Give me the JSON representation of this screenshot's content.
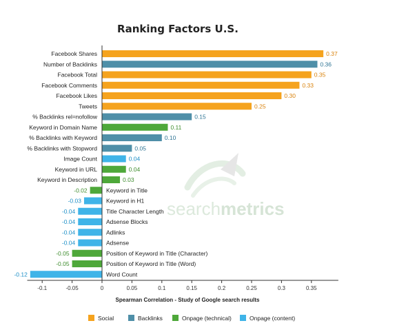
{
  "chart_data": {
    "type": "bar",
    "orientation": "horizontal",
    "title": "Ranking Factors U.S.",
    "xlabel": "Spearman Correlation - Study of Google search results",
    "xlim": [
      -0.125,
      0.395
    ],
    "x_ticks": [
      "-0.1",
      "-0.05",
      "0",
      "0.05",
      "0.1",
      "0.15",
      "0.2",
      "0.25",
      "0.3",
      "0.35"
    ],
    "x_tick_values": [
      -0.1,
      -0.05,
      0,
      0.05,
      0.1,
      0.15,
      0.2,
      0.25,
      0.3,
      0.35
    ],
    "legend": [
      {
        "name": "Social",
        "color": "#f5a31e"
      },
      {
        "name": "Backlinks",
        "color": "#4f8fa8"
      },
      {
        "name": "Onpage (technical)",
        "color": "#4ea83a"
      },
      {
        "name": "Onpage (content)",
        "color": "#3fb4e8"
      }
    ],
    "legend_position": "bottom",
    "watermark": {
      "part1": "search",
      "part2": "metrics"
    },
    "bars": [
      {
        "label": "Facebook Shares",
        "value": 0.37,
        "value_label": "0.37",
        "group": "Social"
      },
      {
        "label": "Number of Backlinks",
        "value": 0.36,
        "value_label": "0.36",
        "group": "Backlinks"
      },
      {
        "label": "Facebook Total",
        "value": 0.35,
        "value_label": "0.35",
        "group": "Social"
      },
      {
        "label": "Facebook Comments",
        "value": 0.33,
        "value_label": "0.33",
        "group": "Social"
      },
      {
        "label": "Facebook Likes",
        "value": 0.3,
        "value_label": "0.30",
        "group": "Social"
      },
      {
        "label": "Tweets",
        "value": 0.25,
        "value_label": "0.25",
        "group": "Social"
      },
      {
        "label": "% Backlinks rel=nofollow",
        "value": 0.15,
        "value_label": "0.15",
        "group": "Backlinks"
      },
      {
        "label": "Keyword in Domain Name",
        "value": 0.11,
        "value_label": "0.11",
        "group": "Onpage (technical)"
      },
      {
        "label": "% Backlinks with Keyword",
        "value": 0.1,
        "value_label": "0.10",
        "group": "Backlinks"
      },
      {
        "label": "% Backlinks with Stopword",
        "value": 0.05,
        "value_label": "0.05",
        "group": "Backlinks"
      },
      {
        "label": "Image Count",
        "value": 0.04,
        "value_label": "0.04",
        "group": "Onpage (content)"
      },
      {
        "label": "Keyword in URL",
        "value": 0.04,
        "value_label": "0.04",
        "group": "Onpage (technical)"
      },
      {
        "label": "Keyword in Description",
        "value": 0.03,
        "value_label": "0.03",
        "group": "Onpage (technical)"
      },
      {
        "label": "Keyword in Title",
        "value": -0.02,
        "value_label": "-0.02",
        "group": "Onpage (technical)"
      },
      {
        "label": "Keyword in H1",
        "value": -0.03,
        "value_label": "-0.03",
        "group": "Onpage (content)"
      },
      {
        "label": "Title Character Length",
        "value": -0.04,
        "value_label": "-0.04",
        "group": "Onpage (content)"
      },
      {
        "label": "Adsense Blocks",
        "value": -0.04,
        "value_label": "-0.04",
        "group": "Onpage (content)"
      },
      {
        "label": "Adlinks",
        "value": -0.04,
        "value_label": "-0.04",
        "group": "Onpage (content)"
      },
      {
        "label": "Adsense",
        "value": -0.04,
        "value_label": "-0.04",
        "group": "Onpage (content)"
      },
      {
        "label": "Position of Keyword in Title (Character)",
        "value": -0.05,
        "value_label": "-0.05",
        "group": "Onpage (technical)"
      },
      {
        "label": "Position of Keyword in Title (Word)",
        "value": -0.05,
        "value_label": "-0.05",
        "group": "Onpage (technical)"
      },
      {
        "label": "Word Count",
        "value": -0.12,
        "value_label": "-0.12",
        "group": "Onpage (content)"
      }
    ]
  }
}
